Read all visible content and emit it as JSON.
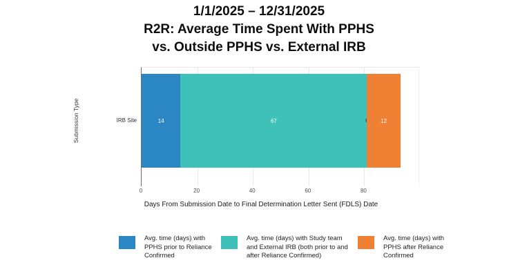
{
  "title": {
    "line1": "1/1/2025 – 12/31/2025",
    "line2": "R2R: Average Time Spent With PPHS",
    "line3": "vs. Outside PPHS vs. External IRB"
  },
  "colors": {
    "blue": "#2B87C4",
    "teal": "#3FC0B8",
    "orange": "#F08034"
  },
  "chart_data": {
    "type": "bar",
    "orientation": "horizontal",
    "stacked": true,
    "title": "1/1/2025 – 12/31/2025 R2R: Average Time Spent With PPHS vs. Outside PPHS vs. External IRB",
    "categories": [
      "IRB Site"
    ],
    "segments": [
      {
        "label": "14",
        "value": 14,
        "series": "Avg. time (days) with PPHS prior to Reliance Confirmed",
        "color": "#2B87C4"
      },
      {
        "label": "67",
        "value": 67,
        "series": "Avg. time (days) with Study team and External IRB (both prior to and after Reliance Confirmed)",
        "color": "#3FC0B8"
      },
      {
        "label": "0",
        "value": 0,
        "series": "",
        "color": null
      },
      {
        "label": "12",
        "value": 12,
        "series": "Avg. time (days) with PPHS after Reliance Confirmed",
        "color": "#F08034"
      }
    ],
    "legend": [
      {
        "label": "Avg. time (days) with PPHS prior to Reliance Confirmed",
        "color": "#2B87C4"
      },
      {
        "label": "Avg. time (days) with Study team and External IRB (both prior to and after Reliance Confirmed)",
        "color": "#3FC0B8"
      },
      {
        "label": "Avg. time (days) with PPHS after Reliance Confirmed",
        "color": "#F08034"
      }
    ],
    "xlabel": "Days From Submission Date to Final Determination Letter Sent (FDLS) Date",
    "ylabel": "Submission Type",
    "xticks": [
      0,
      20,
      40,
      60,
      80
    ],
    "xlim": [
      0,
      100
    ],
    "grid": true,
    "legend_position": "bottom"
  }
}
